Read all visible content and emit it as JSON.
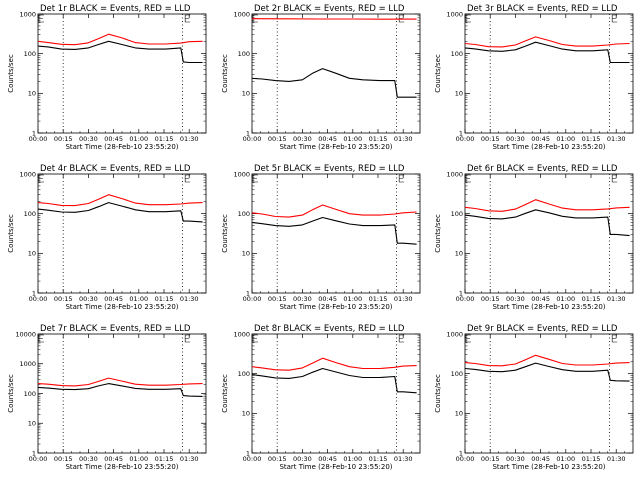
{
  "figure": {
    "panels_per_row": 3
  },
  "chart_data": [
    {
      "type": "line",
      "title": "Det 1r BLACK = Events, RED = LLD",
      "xlabel": "Start Time (28-Feb-10 23:55:20)",
      "ylabel": "Counts/sec",
      "yscale": "log",
      "ylim": [
        1,
        1000
      ],
      "yticks": [
        "1",
        "10",
        "100",
        "1000"
      ],
      "xticks": [
        "00:00",
        "00:15",
        "00:30",
        "00:45",
        "01:00",
        "01:15",
        "01:30"
      ],
      "x_minutes_range": [
        0,
        100
      ],
      "vlines_minutes": [
        15,
        86
      ],
      "corner_mark_minutes": [
        0,
        87
      ],
      "series": [
        {
          "name": "Events",
          "color": "#000000",
          "x": [
            0,
            6,
            14,
            22,
            30,
            36,
            42,
            50,
            58,
            66,
            76,
            85,
            86.5,
            90,
            98
          ],
          "y": [
            155,
            148,
            130,
            128,
            140,
            170,
            205,
            170,
            140,
            130,
            130,
            140,
            62,
            60,
            60
          ]
        },
        {
          "name": "LLD",
          "color": "#ff0000",
          "x": [
            0,
            6,
            14,
            22,
            30,
            36,
            42,
            50,
            58,
            66,
            76,
            85,
            90,
            98
          ],
          "y": [
            205,
            190,
            172,
            168,
            188,
            240,
            310,
            250,
            190,
            175,
            175,
            185,
            200,
            205
          ]
        }
      ]
    },
    {
      "type": "line",
      "title": "Det 2r BLACK = Events, RED = LLD",
      "xlabel": "Start Time (28-Feb-10 23:55:20)",
      "ylabel": "Counts/sec",
      "yscale": "log",
      "ylim": [
        1,
        1000
      ],
      "yticks": [
        "1",
        "10",
        "100",
        "1000"
      ],
      "xticks": [
        "00:00",
        "00:15",
        "00:30",
        "00:45",
        "01:00",
        "01:15",
        "01:30"
      ],
      "x_minutes_range": [
        0,
        100
      ],
      "vlines_minutes": [
        15,
        86
      ],
      "corner_mark_minutes": [
        0,
        87
      ],
      "series": [
        {
          "name": "Events",
          "color": "#000000",
          "x": [
            0,
            6,
            14,
            22,
            30,
            36,
            42,
            50,
            58,
            66,
            76,
            85,
            86.5,
            90,
            98
          ],
          "y": [
            24,
            23,
            21,
            20,
            22,
            32,
            42,
            32,
            24,
            22,
            21,
            21,
            8,
            8,
            8
          ]
        },
        {
          "name": "LLD",
          "color": "#ff0000",
          "x": [
            0,
            20,
            40,
            60,
            80,
            98
          ],
          "y": [
            760,
            755,
            750,
            750,
            740,
            745
          ]
        }
      ]
    },
    {
      "type": "line",
      "title": "Det 3r BLACK = Events, RED = LLD",
      "xlabel": "Start Time (28-Feb-10 23:55:20)",
      "ylabel": "Counts/sec",
      "yscale": "log",
      "ylim": [
        1,
        1000
      ],
      "yticks": [
        "1",
        "10",
        "100",
        "1000"
      ],
      "xticks": [
        "00:00",
        "00:15",
        "00:30",
        "00:45",
        "01:00",
        "01:15",
        "01:30"
      ],
      "x_minutes_range": [
        0,
        100
      ],
      "vlines_minutes": [
        15,
        86
      ],
      "corner_mark_minutes": [
        0,
        87
      ],
      "series": [
        {
          "name": "Events",
          "color": "#000000",
          "x": [
            0,
            6,
            14,
            22,
            30,
            36,
            42,
            50,
            58,
            66,
            76,
            85,
            86.5,
            90,
            98
          ],
          "y": [
            140,
            132,
            118,
            115,
            125,
            155,
            195,
            160,
            130,
            118,
            118,
            125,
            60,
            60,
            60
          ]
        },
        {
          "name": "LLD",
          "color": "#ff0000",
          "x": [
            0,
            6,
            14,
            22,
            30,
            36,
            42,
            50,
            58,
            66,
            76,
            85,
            90,
            98
          ],
          "y": [
            180,
            170,
            150,
            148,
            165,
            210,
            265,
            215,
            170,
            155,
            155,
            165,
            175,
            180
          ]
        }
      ]
    },
    {
      "type": "line",
      "title": "Det 4r BLACK = Events, RED = LLD",
      "xlabel": "Start Time (28-Feb-10 23:55:20)",
      "ylabel": "Counts/sec",
      "yscale": "log",
      "ylim": [
        1,
        1000
      ],
      "yticks": [
        "1",
        "10",
        "100",
        "1000"
      ],
      "xticks": [
        "00:00",
        "00:15",
        "00:30",
        "00:45",
        "01:00",
        "01:15",
        "01:30"
      ],
      "x_minutes_range": [
        0,
        100
      ],
      "vlines_minutes": [
        15,
        86
      ],
      "corner_mark_minutes": [
        0,
        87
      ],
      "series": [
        {
          "name": "Events",
          "color": "#000000",
          "x": [
            0,
            6,
            14,
            22,
            30,
            36,
            42,
            50,
            58,
            66,
            76,
            85,
            86.5,
            90,
            98
          ],
          "y": [
            130,
            122,
            110,
            108,
            120,
            150,
            190,
            155,
            125,
            112,
            112,
            118,
            65,
            65,
            62
          ]
        },
        {
          "name": "LLD",
          "color": "#ff0000",
          "x": [
            0,
            6,
            14,
            22,
            30,
            36,
            42,
            50,
            58,
            66,
            76,
            85,
            90,
            98
          ],
          "y": [
            190,
            180,
            162,
            160,
            180,
            230,
            300,
            240,
            185,
            168,
            168,
            175,
            185,
            190
          ]
        }
      ]
    },
    {
      "type": "line",
      "title": "Det 5r BLACK = Events, RED = LLD",
      "xlabel": "Start Time (28-Feb-10 23:55:20)",
      "ylabel": "Counts/sec",
      "yscale": "log",
      "ylim": [
        1,
        1000
      ],
      "yticks": [
        "1",
        "10",
        "100",
        "1000"
      ],
      "xticks": [
        "00:00",
        "00:15",
        "00:30",
        "00:45",
        "01:00",
        "01:15",
        "01:30"
      ],
      "x_minutes_range": [
        0,
        100
      ],
      "vlines_minutes": [
        15,
        86
      ],
      "corner_mark_minutes": [
        0,
        87
      ],
      "series": [
        {
          "name": "Events",
          "color": "#000000",
          "x": [
            0,
            6,
            14,
            22,
            30,
            36,
            42,
            50,
            58,
            66,
            76,
            85,
            86.5,
            90,
            98
          ],
          "y": [
            60,
            56,
            50,
            48,
            52,
            65,
            80,
            66,
            55,
            50,
            50,
            52,
            18,
            18,
            17
          ]
        },
        {
          "name": "LLD",
          "color": "#ff0000",
          "x": [
            0,
            6,
            14,
            22,
            30,
            36,
            42,
            50,
            58,
            66,
            76,
            85,
            90,
            98
          ],
          "y": [
            105,
            98,
            85,
            82,
            92,
            125,
            165,
            128,
            100,
            92,
            92,
            98,
            105,
            110
          ]
        }
      ]
    },
    {
      "type": "line",
      "title": "Det 6r BLACK = Events, RED = LLD",
      "xlabel": "Start Time (28-Feb-10 23:55:20)",
      "ylabel": "Counts/sec",
      "yscale": "log",
      "ylim": [
        1,
        1000
      ],
      "yticks": [
        "1",
        "10",
        "100",
        "1000"
      ],
      "xticks": [
        "00:00",
        "00:15",
        "00:30",
        "00:45",
        "01:00",
        "01:15",
        "01:30"
      ],
      "x_minutes_range": [
        0,
        100
      ],
      "vlines_minutes": [
        15,
        86
      ],
      "corner_mark_minutes": [
        0,
        87
      ],
      "series": [
        {
          "name": "Events",
          "color": "#000000",
          "x": [
            0,
            6,
            14,
            22,
            30,
            36,
            42,
            50,
            58,
            66,
            76,
            85,
            86.5,
            90,
            98
          ],
          "y": [
            92,
            86,
            76,
            74,
            82,
            102,
            125,
            105,
            86,
            78,
            78,
            82,
            30,
            30,
            28
          ]
        },
        {
          "name": "LLD",
          "color": "#ff0000",
          "x": [
            0,
            6,
            14,
            22,
            30,
            36,
            42,
            50,
            58,
            66,
            76,
            85,
            90,
            98
          ],
          "y": [
            145,
            135,
            118,
            115,
            130,
            170,
            225,
            175,
            138,
            125,
            125,
            132,
            140,
            145
          ]
        }
      ]
    },
    {
      "type": "line",
      "title": "Det 7r BLACK = Events, RED = LLD",
      "xlabel": "Start Time (28-Feb-10 23:55:20)",
      "ylabel": "Counts/sec",
      "yscale": "log",
      "ylim": [
        1,
        10000
      ],
      "yticks": [
        "1",
        "10",
        "100",
        "1000",
        "10000"
      ],
      "xticks": [
        "00:00",
        "00:15",
        "00:30",
        "00:45",
        "01:00",
        "01:15",
        "01:30"
      ],
      "x_minutes_range": [
        0,
        100
      ],
      "vlines_minutes": [
        15,
        86
      ],
      "corner_mark_minutes": [
        0,
        87
      ],
      "series": [
        {
          "name": "Events",
          "color": "#000000",
          "x": [
            0,
            6,
            14,
            22,
            30,
            36,
            42,
            50,
            58,
            66,
            76,
            85,
            86.5,
            90,
            98
          ],
          "y": [
            160,
            152,
            138,
            135,
            145,
            180,
            215,
            180,
            148,
            138,
            138,
            145,
            85,
            82,
            80
          ]
        },
        {
          "name": "LLD",
          "color": "#ff0000",
          "x": [
            0,
            6,
            14,
            22,
            30,
            36,
            42,
            50,
            58,
            66,
            76,
            85,
            90,
            98
          ],
          "y": [
            215,
            205,
            185,
            180,
            200,
            255,
            330,
            262,
            205,
            190,
            190,
            200,
            210,
            215
          ]
        }
      ]
    },
    {
      "type": "line",
      "title": "Det 8r BLACK = Events, RED = LLD",
      "xlabel": "Start Time (28-Feb-10 23:55:20)",
      "ylabel": "Counts/sec",
      "yscale": "log",
      "ylim": [
        1,
        1000
      ],
      "yticks": [
        "1",
        "10",
        "100",
        "1000"
      ],
      "xticks": [
        "00:00",
        "00:15",
        "00:30",
        "00:45",
        "01:00",
        "01:15",
        "01:30"
      ],
      "x_minutes_range": [
        0,
        100
      ],
      "vlines_minutes": [
        15,
        86
      ],
      "corner_mark_minutes": [
        0,
        87
      ],
      "series": [
        {
          "name": "Events",
          "color": "#000000",
          "x": [
            0,
            6,
            14,
            22,
            30,
            36,
            42,
            50,
            58,
            66,
            76,
            85,
            86.5,
            90,
            98
          ],
          "y": [
            95,
            88,
            78,
            76,
            85,
            108,
            135,
            110,
            90,
            80,
            80,
            85,
            35,
            35,
            33
          ]
        },
        {
          "name": "LLD",
          "color": "#ff0000",
          "x": [
            0,
            6,
            14,
            22,
            30,
            36,
            42,
            50,
            58,
            66,
            76,
            85,
            90,
            98
          ],
          "y": [
            150,
            140,
            125,
            122,
            140,
            185,
            245,
            190,
            150,
            135,
            135,
            145,
            155,
            160
          ]
        }
      ]
    },
    {
      "type": "line",
      "title": "Det 9r BLACK = Events, RED = LLD",
      "xlabel": "Start Time (28-Feb-10 23:55:20)",
      "ylabel": "Counts/sec",
      "yscale": "log",
      "ylim": [
        1,
        1000
      ],
      "yticks": [
        "1",
        "10",
        "100",
        "1000"
      ],
      "xticks": [
        "00:00",
        "00:15",
        "00:30",
        "00:45",
        "01:00",
        "01:15",
        "01:30"
      ],
      "x_minutes_range": [
        0,
        100
      ],
      "vlines_minutes": [
        15,
        86
      ],
      "corner_mark_minutes": [
        0,
        87
      ],
      "series": [
        {
          "name": "Events",
          "color": "#000000",
          "x": [
            0,
            6,
            14,
            22,
            30,
            36,
            42,
            50,
            58,
            66,
            76,
            85,
            86.5,
            90,
            98
          ],
          "y": [
            135,
            128,
            115,
            112,
            122,
            150,
            185,
            152,
            126,
            115,
            115,
            122,
            68,
            66,
            65
          ]
        },
        {
          "name": "LLD",
          "color": "#ff0000",
          "x": [
            0,
            6,
            14,
            22,
            30,
            36,
            42,
            50,
            58,
            66,
            76,
            85,
            90,
            98
          ],
          "y": [
            190,
            180,
            160,
            158,
            175,
            225,
            290,
            230,
            180,
            165,
            165,
            175,
            185,
            190
          ]
        }
      ]
    }
  ]
}
